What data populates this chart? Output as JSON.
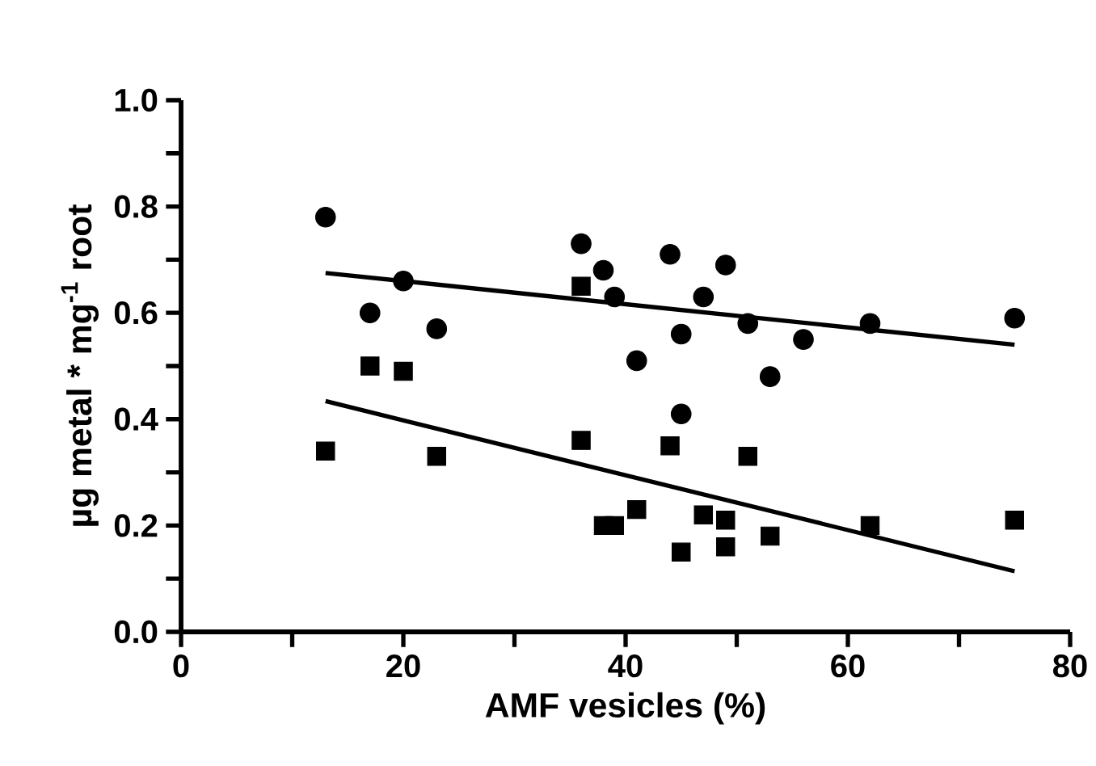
{
  "chart_data": {
    "type": "scatter",
    "xlabel": "AMF vesicles (%)",
    "ylabel": "µg metal * mg$^{-1}$ root",
    "xlim": [
      0,
      80
    ],
    "ylim": [
      0,
      1
    ],
    "xticks": [
      0,
      {
        "value": 10,
        "label": null
      },
      20,
      {
        "value": 30,
        "label": null
      },
      40,
      {
        "value": 50,
        "label": null
      },
      60,
      {
        "value": 70,
        "label": null
      },
      80
    ],
    "yticks": [
      {
        "value": 0,
        "label": "0.0"
      },
      {
        "value": 0.1,
        "label": null
      },
      {
        "value": 0.2,
        "label": "0.2"
      },
      {
        "value": 0.3,
        "label": null
      },
      {
        "value": 0.4,
        "label": "0.4"
      },
      {
        "value": 0.5,
        "label": null
      },
      {
        "value": 0.6,
        "label": "0.6"
      },
      {
        "value": 0.7,
        "label": null
      },
      {
        "value": 0.8,
        "label": "0.8"
      },
      {
        "value": 0.9,
        "label": null
      },
      {
        "value": 1,
        "label": "1.0"
      }
    ],
    "grid": false,
    "series": [
      {
        "marker": "circle",
        "color": "#000000",
        "x": [
          13,
          17,
          20,
          23,
          36,
          38,
          39,
          41,
          44,
          45,
          45,
          47,
          49,
          51,
          53,
          56,
          62,
          75
        ],
        "values": [
          0.78,
          0.6,
          0.66,
          0.57,
          0.73,
          0.68,
          0.63,
          0.51,
          0.71,
          0.56,
          0.41,
          0.63,
          0.69,
          0.58,
          0.48,
          0.55,
          0.58,
          0.59
        ]
      },
      {
        "marker": "square",
        "color": "#000000",
        "x": [
          13,
          17,
          20,
          23,
          36,
          36,
          38,
          39,
          41,
          44,
          45,
          47,
          49,
          49,
          51,
          53,
          62,
          75
        ],
        "values": [
          0.34,
          0.5,
          0.49,
          0.33,
          0.65,
          0.36,
          0.2,
          0.2,
          0.23,
          0.35,
          0.15,
          0.22,
          0.21,
          0.16,
          0.33,
          0.18,
          0.2,
          0.21
        ]
      },
      {
        "type": "line",
        "marker": "none",
        "line_style": "solid",
        "color": "#000000",
        "x": [
          13,
          75
        ],
        "values": [
          0.675,
          0.54
        ]
      },
      {
        "type": "line",
        "marker": "none",
        "line_style": "solid",
        "color": "#000000",
        "x": [
          13,
          75
        ],
        "values": [
          0.434,
          0.114
        ]
      }
    ]
  }
}
